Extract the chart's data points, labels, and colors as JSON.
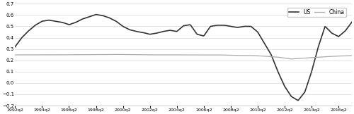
{
  "ylim": [
    -0.2,
    0.7
  ],
  "yticks": [
    -0.2,
    -0.1,
    0.0,
    0.1,
    0.2,
    0.3,
    0.4,
    0.5,
    0.6,
    0.7
  ],
  "xtick_labels": [
    "1992q2",
    "1994q2",
    "1996q2",
    "1998q2",
    "2000q2",
    "2002q2",
    "2004q2",
    "2006q2",
    "2008q2",
    "2010q2",
    "2012q2",
    "2014q2",
    "2016q2"
  ],
  "us_color": "#333333",
  "china_color": "#aaaaaa",
  "us_linewidth": 1.2,
  "china_linewidth": 0.9,
  "background_color": "#ffffff",
  "legend_labels": [
    "US",
    "China"
  ],
  "us_keypoints_x": [
    0,
    2,
    4,
    6,
    8,
    10,
    12,
    14,
    16,
    18,
    20,
    22,
    24,
    26,
    28,
    30,
    32,
    34,
    36,
    38,
    40,
    42,
    44,
    46,
    48,
    50,
    52,
    54,
    56,
    58,
    60,
    62,
    64,
    66,
    68,
    70,
    72,
    74,
    76,
    78,
    80,
    82,
    84,
    86,
    88,
    90,
    92,
    94,
    96,
    98,
    100
  ],
  "us_keypoints_y": [
    0.32,
    0.4,
    0.46,
    0.51,
    0.545,
    0.555,
    0.545,
    0.535,
    0.515,
    0.535,
    0.565,
    0.585,
    0.605,
    0.595,
    0.575,
    0.545,
    0.5,
    0.47,
    0.455,
    0.445,
    0.43,
    0.44,
    0.455,
    0.465,
    0.455,
    0.505,
    0.515,
    0.43,
    0.415,
    0.5,
    0.51,
    0.51,
    0.5,
    0.49,
    0.5,
    0.5,
    0.45,
    0.35,
    0.25,
    0.1,
    -0.03,
    -0.12,
    -0.155,
    -0.08,
    0.1,
    0.32,
    0.5,
    0.44,
    0.41,
    0.46,
    0.54
  ],
  "china_keypoints_x": [
    0,
    10,
    20,
    30,
    40,
    50,
    60,
    66,
    70,
    74,
    78,
    82,
    86,
    90,
    94,
    100
  ],
  "china_keypoints_y": [
    0.248,
    0.248,
    0.25,
    0.252,
    0.248,
    0.248,
    0.248,
    0.243,
    0.243,
    0.237,
    0.228,
    0.212,
    0.22,
    0.228,
    0.235,
    0.242
  ]
}
